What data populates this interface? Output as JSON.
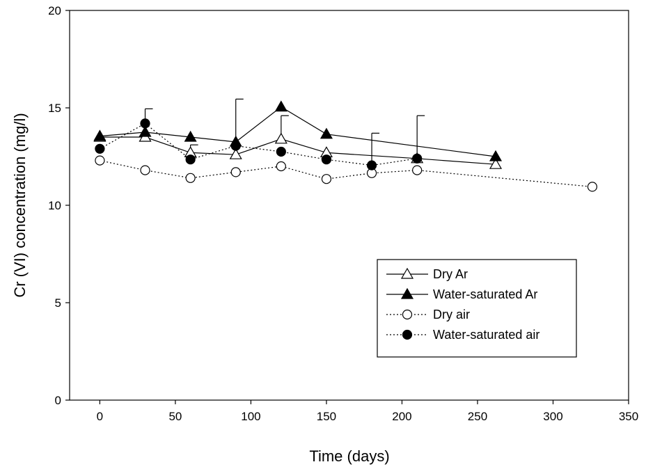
{
  "chart_data": {
    "type": "line",
    "title": "",
    "xlabel": "Time (days)",
    "ylabel": "Cr (VI) concentration (mg/l)",
    "xlim": [
      -20,
      350
    ],
    "ylim": [
      0,
      20
    ],
    "x_ticks": [
      0,
      50,
      100,
      150,
      200,
      250,
      300,
      350
    ],
    "y_ticks": [
      0,
      5,
      10,
      15,
      20
    ],
    "grid": false,
    "legend_position": "lower-right",
    "series": [
      {
        "name": "Dry Ar",
        "line_style": "solid",
        "marker": "triangle-open",
        "x": [
          0,
          30,
          60,
          90,
          120,
          150,
          210,
          262
        ],
        "y": [
          13.5,
          13.5,
          12.7,
          12.6,
          13.4,
          12.7,
          12.4,
          12.1
        ],
        "error_upper": [
          null,
          null,
          13.1,
          null,
          14.6,
          null,
          null,
          null
        ]
      },
      {
        "name": "Water-saturated Ar",
        "line_style": "solid",
        "marker": "triangle-filled",
        "x": [
          0,
          30,
          60,
          90,
          120,
          150,
          262
        ],
        "y": [
          13.55,
          13.75,
          13.5,
          13.25,
          15.05,
          13.65,
          12.5
        ],
        "error_upper": [
          null,
          null,
          null,
          15.45,
          null,
          null,
          null
        ]
      },
      {
        "name": "Dry air",
        "line_style": "dotted",
        "marker": "circle-open",
        "x": [
          0,
          30,
          60,
          90,
          120,
          150,
          180,
          210,
          326
        ],
        "y": [
          12.3,
          11.8,
          11.4,
          11.7,
          12.0,
          11.35,
          11.65,
          11.8,
          10.95
        ],
        "error_upper": [
          null,
          null,
          null,
          null,
          null,
          null,
          null,
          null,
          null
        ]
      },
      {
        "name": "Water-saturated air",
        "line_style": "dotted",
        "marker": "circle-filled",
        "x": [
          0,
          30,
          60,
          90,
          120,
          150,
          180,
          210
        ],
        "y": [
          12.9,
          14.2,
          12.35,
          13.05,
          12.75,
          12.35,
          12.05,
          12.4
        ],
        "error_upper": [
          null,
          14.95,
          null,
          null,
          null,
          null,
          13.7,
          14.6
        ]
      }
    ]
  }
}
